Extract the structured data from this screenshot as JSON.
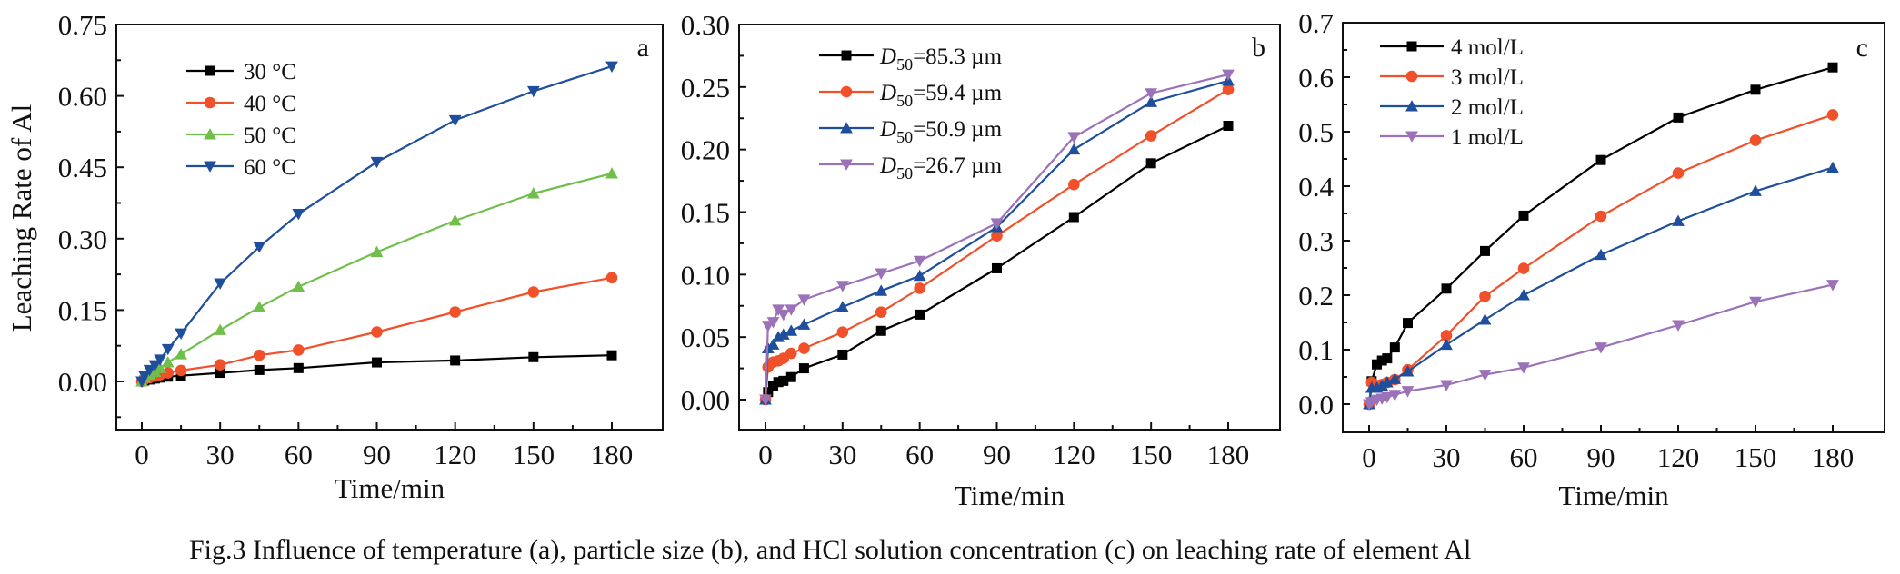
{
  "caption": "Fig.3  Influence of temperature (a), particle size (b), and HCl solution concentration (c) on leaching rate of element Al",
  "chart_data": [
    {
      "panel": "a",
      "type": "line",
      "xlabel": "Time/min",
      "ylabel": "Leaching Rate of Al",
      "xlim": [
        -8,
        193
      ],
      "ylim": [
        -0.07,
        0.75
      ],
      "xticks": [
        0,
        30,
        60,
        90,
        120,
        150,
        180
      ],
      "yticks": [
        0.0,
        0.15,
        0.3,
        0.45,
        0.6,
        0.75
      ],
      "ytick_labels": [
        "0.00",
        "0.15",
        "0.30",
        "0.45",
        "0.60",
        "0.75"
      ],
      "legend_position": "top-left",
      "x": [
        0,
        1,
        3,
        5,
        7,
        10,
        15,
        30,
        45,
        60,
        90,
        120,
        150,
        180
      ],
      "series": [
        {
          "name": "30 °C",
          "color": "#000000",
          "marker": "square",
          "values": [
            0,
            0.002,
            0.004,
            0.006,
            0.008,
            0.01,
            0.012,
            0.018,
            0.024,
            0.028,
            0.04,
            0.044,
            0.051,
            0.055
          ]
        },
        {
          "name": "40 °C",
          "color": "#f0502a",
          "marker": "circle",
          "values": [
            0,
            0.004,
            0.008,
            0.011,
            0.014,
            0.018,
            0.023,
            0.035,
            0.055,
            0.066,
            0.104,
            0.146,
            0.188,
            0.218
          ]
        },
        {
          "name": "50 °C",
          "color": "#6fbf4a",
          "marker": "triangle-up",
          "values": [
            0,
            0.008,
            0.014,
            0.02,
            0.028,
            0.04,
            0.057,
            0.108,
            0.156,
            0.199,
            0.272,
            0.338,
            0.395,
            0.437
          ]
        },
        {
          "name": "60 °C",
          "color": "#1f4e9c",
          "marker": "triangle-down",
          "values": [
            0,
            0.012,
            0.024,
            0.034,
            0.046,
            0.068,
            0.101,
            0.206,
            0.283,
            0.352,
            0.461,
            0.549,
            0.61,
            0.662
          ]
        }
      ]
    },
    {
      "panel": "b",
      "type": "line",
      "xlabel": "Time/min",
      "ylabel": "",
      "xlim": [
        -8,
        193
      ],
      "ylim": [
        -0.025,
        0.3
      ],
      "xticks": [
        0,
        30,
        60,
        90,
        120,
        150,
        180
      ],
      "yticks": [
        0.0,
        0.05,
        0.1,
        0.15,
        0.2,
        0.25,
        0.3
      ],
      "ytick_labels": [
        "0.00",
        "0.05",
        "0.10",
        "0.15",
        "0.20",
        "0.25",
        "0.30"
      ],
      "legend_position": "top-left",
      "x": [
        0,
        1,
        3,
        5,
        7,
        10,
        15,
        30,
        45,
        60,
        90,
        120,
        150,
        180
      ],
      "series": [
        {
          "name": "D50=85.3 µm",
          "label_main": "D",
          "label_sub": "50",
          "label_rest": "=85.3 µm",
          "color": "#000000",
          "marker": "square",
          "values": [
            0,
            0.006,
            0.011,
            0.014,
            0.015,
            0.018,
            0.025,
            0.036,
            0.055,
            0.068,
            0.105,
            0.146,
            0.189,
            0.219
          ]
        },
        {
          "name": "D50=59.4 µm",
          "label_main": "D",
          "label_sub": "50",
          "label_rest": "=59.4 µm",
          "color": "#f0502a",
          "marker": "circle",
          "values": [
            0,
            0.026,
            0.03,
            0.031,
            0.033,
            0.037,
            0.041,
            0.054,
            0.07,
            0.089,
            0.131,
            0.172,
            0.211,
            0.248
          ]
        },
        {
          "name": "D50=50.9 µm",
          "label_main": "D",
          "label_sub": "50",
          "label_rest": "=50.9 µm",
          "color": "#1f4e9c",
          "marker": "triangle-up",
          "values": [
            0,
            0.041,
            0.044,
            0.05,
            0.052,
            0.055,
            0.06,
            0.074,
            0.087,
            0.099,
            0.138,
            0.2,
            0.238,
            0.255
          ]
        },
        {
          "name": "D50=26.7 µm",
          "label_main": "D",
          "label_sub": "50",
          "label_rest": "=26.7 µm",
          "color": "#9b72b8",
          "marker": "triangle-down",
          "values": [
            0,
            0.059,
            0.062,
            0.072,
            0.068,
            0.072,
            0.08,
            0.091,
            0.101,
            0.111,
            0.141,
            0.21,
            0.245,
            0.26
          ]
        }
      ]
    },
    {
      "panel": "c",
      "type": "line",
      "xlabel": "Time/min",
      "ylabel": "",
      "xlim": [
        -8,
        193
      ],
      "ylim": [
        -0.05,
        0.7
      ],
      "xticks": [
        0,
        30,
        60,
        90,
        120,
        150,
        180
      ],
      "yticks": [
        0.0,
        0.1,
        0.2,
        0.3,
        0.4,
        0.5,
        0.6,
        0.7
      ],
      "ytick_labels": [
        "0.0",
        "0.1",
        "0.2",
        "0.3",
        "0.4",
        "0.5",
        "0.6",
        "0.7"
      ],
      "legend_position": "top-left",
      "x": [
        0,
        1,
        3,
        5,
        7,
        10,
        15,
        30,
        45,
        60,
        90,
        120,
        150,
        180
      ],
      "series": [
        {
          "name": "4 mol/L",
          "color": "#000000",
          "marker": "square",
          "values": [
            0,
            0.042,
            0.073,
            0.08,
            0.084,
            0.104,
            0.149,
            0.212,
            0.281,
            0.346,
            0.448,
            0.526,
            0.577,
            0.618
          ]
        },
        {
          "name": "3 mol/L",
          "color": "#f0502a",
          "marker": "circle",
          "values": [
            0,
            0.04,
            0.034,
            0.036,
            0.04,
            0.045,
            0.063,
            0.126,
            0.198,
            0.249,
            0.345,
            0.424,
            0.484,
            0.531
          ]
        },
        {
          "name": "2 mol/L",
          "color": "#1f4e9c",
          "marker": "triangle-up",
          "values": [
            0,
            0.03,
            0.03,
            0.034,
            0.04,
            0.046,
            0.06,
            0.109,
            0.155,
            0.2,
            0.274,
            0.336,
            0.391,
            0.434
          ]
        },
        {
          "name": "1 mol/L",
          "color": "#9b72b8",
          "marker": "triangle-down",
          "values": [
            0,
            0.004,
            0.008,
            0.01,
            0.013,
            0.017,
            0.024,
            0.035,
            0.054,
            0.067,
            0.104,
            0.145,
            0.188,
            0.219
          ]
        }
      ]
    }
  ]
}
